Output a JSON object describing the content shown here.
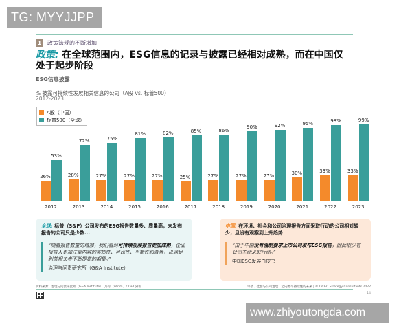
{
  "watermarks": {
    "top_left": "TG: MYYJJPP",
    "bottom_right": "www.zhiyoutongda.com"
  },
  "section": {
    "number": "1",
    "label": "政策法规的不断增加"
  },
  "headline": {
    "prefix": "政策:",
    "text": "在全球范围内，ESG信息的记录与披露已经相对成熟，而在中国仅处于起步阶段"
  },
  "subtitle": "ESG信息披露",
  "chart_data": {
    "type": "bar",
    "title": "% 披露可持续性发展相关信息的公司（A股 vs. 标普500）",
    "subtitle": "2012-2023",
    "xlabel": "",
    "ylabel": "%",
    "ylim": [
      0,
      100
    ],
    "grid": false,
    "legend_position": "top-left",
    "categories": [
      "2012",
      "2013",
      "2014",
      "2015",
      "2016",
      "2017",
      "2018",
      "2019",
      "2020",
      "2021",
      "2022",
      "2023"
    ],
    "series": [
      {
        "name": "A股（中国）",
        "color": "#f48a2b",
        "values": [
          26,
          28,
          27,
          27,
          27,
          25,
          27,
          27,
          27,
          30,
          33,
          33
        ]
      },
      {
        "name": "标普500（全球）",
        "color": "#3a9e9a",
        "values": [
          53,
          72,
          75,
          81,
          82,
          85,
          86,
          90,
          92,
          95,
          98,
          99
        ]
      }
    ]
  },
  "panels": {
    "global": {
      "tag": "全球:",
      "head": "标普（S&P）公司发布的ESG报告数量多、质量高，未发布报告的公司只是少数...",
      "quote_pre": "“随着报告数量的增加，我们看到",
      "quote_bold": "可持续发展报告更加成熟",
      "quote_post": "，企业报告人更加注重内容的实质性、可比性、平衡性和背景，以满足利益相关者不断提高的期望。”",
      "source": "治理与问责研究所（G&A Institute）"
    },
    "china": {
      "tag": "中国:",
      "head": "在环境、社会和公司治理报告方面采取行动的公司相对较少，且没有观察到上升趋势",
      "quote_pre": "“由于中国",
      "quote_bold": "没有强制要求上市公司发布ESG报告",
      "quote_post": "，因此很少有公司主动采取行动。”",
      "source": "中国ESG发展白皮书"
    }
  },
  "footer": {
    "source": "资料来源：治理与问责研究所（G&A Institute），万得（Wind），OC&C分析",
    "right": "环境、社会与公司治理：迈向更可持续性的未来 | © OC&C Strategy Consultants 2022",
    "page": "14"
  }
}
